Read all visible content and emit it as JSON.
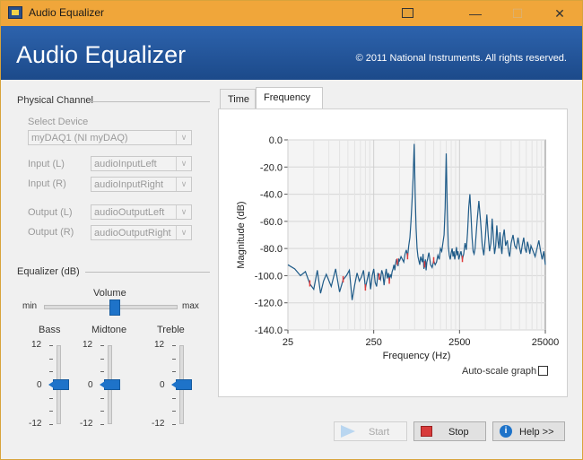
{
  "window": {
    "title": "Audio Equalizer"
  },
  "banner": {
    "title": "Audio Equalizer",
    "copyright": "© 2011 National Instruments. All rights reserved."
  },
  "physical_channel": {
    "section": "Physical Channel",
    "select_device_label": "Select Device",
    "device": "myDAQ1 (NI myDAQ)",
    "input_l_label": "Input (L)",
    "input_l": "audioInputLeft",
    "input_r_label": "Input (R)",
    "input_r": "audioInputRight",
    "output_l_label": "Output (L)",
    "output_l": "audioOutputLeft",
    "output_r_label": "Output (R)",
    "output_r": "audioOutputRight"
  },
  "equalizer": {
    "section": "Equalizer (dB)",
    "volume": {
      "label": "Volume",
      "min": "min",
      "max": "max",
      "value": 0.53
    },
    "bands": [
      {
        "name": "Bass",
        "top": "12",
        "mid": "0",
        "bottom": "-12",
        "value": 0
      },
      {
        "name": "Midtone",
        "top": "12",
        "mid": "0",
        "bottom": "-12",
        "value": 0
      },
      {
        "name": "Treble",
        "top": "12",
        "mid": "0",
        "bottom": "-12",
        "value": 0
      }
    ]
  },
  "tabs": [
    {
      "label": "Time",
      "active": false
    },
    {
      "label": "Frequency",
      "active": true
    }
  ],
  "graph": {
    "autoscale_label": "Auto-scale graph",
    "autoscale_checked": false
  },
  "buttons": {
    "start": "Start",
    "stop": "Stop",
    "help": "Help >>"
  },
  "colors": {
    "banner": "#1c4a8a",
    "titlebar": "#f0a63a",
    "accent": "#1e73c9",
    "trace": "#1f5b88",
    "trace_highlight": "#e03a3a",
    "stop_icon": "#d83b3b",
    "help_icon": "#1e73c9"
  },
  "chart_data": {
    "type": "line",
    "xlabel": "Frequency (Hz)",
    "ylabel": "Magnitude (dB)",
    "xscale": "log",
    "xlim": [
      25,
      25000
    ],
    "ylim": [
      -140,
      0
    ],
    "xticks": [
      "25",
      "250",
      "2500",
      "25000"
    ],
    "yticks": [
      "0.0",
      "-20.0",
      "-40.0",
      "-60.0",
      "-80.0",
      "-100.0",
      "-120.0",
      "-140.0"
    ],
    "grid": true,
    "series": [
      {
        "x": [
          25,
          30,
          35,
          40,
          45,
          50,
          55,
          60,
          65,
          70,
          80,
          90,
          100,
          110,
          120,
          130,
          140,
          150,
          160,
          170,
          180,
          190,
          200,
          210,
          220,
          230,
          240,
          250,
          260,
          270,
          280,
          290,
          300,
          310,
          320,
          330,
          340,
          350,
          360,
          370,
          380,
          390,
          400,
          410,
          420,
          430,
          440,
          450,
          460,
          470,
          480,
          490,
          500,
          520,
          540,
          560,
          580,
          600,
          620,
          640,
          660,
          680,
          700,
          720,
          740,
          760,
          780,
          800,
          820,
          840,
          860,
          880,
          900,
          920,
          940,
          960,
          980,
          1000,
          1020,
          1040,
          1060,
          1080,
          1100,
          1150,
          1200,
          1250,
          1300,
          1350,
          1400,
          1450,
          1500,
          1550,
          1600,
          1650,
          1700,
          1750,
          1800,
          1850,
          1900,
          1950,
          2000,
          2050,
          2100,
          2150,
          2200,
          2250,
          2300,
          2350,
          2400,
          2450,
          2500,
          2600,
          2700,
          2800,
          2900,
          3000,
          3100,
          3200,
          3300,
          3400,
          3500,
          3600,
          3700,
          3800,
          3900,
          4000,
          4200,
          4400,
          4600,
          4800,
          5000,
          5200,
          5400,
          5600,
          5800,
          6000,
          6200,
          6400,
          6600,
          6800,
          7000,
          7200,
          7400,
          7600,
          7800,
          8000,
          8300,
          8600,
          9000,
          9300,
          9600,
          10000,
          10500,
          11000,
          11500,
          12000,
          12500,
          13000,
          13500,
          14000,
          14500,
          15000,
          15500,
          16000,
          16500,
          17000,
          18000,
          19000,
          20000,
          21000,
          22000,
          23000,
          24000,
          25000
        ],
        "y": [
          -92,
          -95,
          -100,
          -97,
          -106,
          -110,
          -96,
          -113,
          -104,
          -99,
          -108,
          -95,
          -112,
          -103,
          -100,
          -96,
          -118,
          -107,
          -98,
          -104,
          -101,
          -96,
          -109,
          -103,
          -97,
          -110,
          -100,
          -95,
          -105,
          -108,
          -98,
          -101,
          -103,
          -96,
          -99,
          -107,
          -100,
          -95,
          -102,
          -98,
          -104,
          -99,
          -101,
          -97,
          -95,
          -92,
          -96,
          -91,
          -88,
          -90,
          -93,
          -88,
          -89,
          -86,
          -88,
          -90,
          -84,
          -81,
          -86,
          -78,
          -72,
          -60,
          -45,
          -28,
          -3,
          -40,
          -65,
          -80,
          -86,
          -89,
          -92,
          -86,
          -88,
          -90,
          -84,
          -95,
          -92,
          -88,
          -96,
          -90,
          -88,
          -85,
          -83,
          -92,
          -94,
          -89,
          -92,
          -90,
          -85,
          -88,
          -80,
          -82,
          -76,
          -70,
          -50,
          -10,
          -52,
          -78,
          -85,
          -88,
          -83,
          -80,
          -86,
          -82,
          -88,
          -84,
          -79,
          -85,
          -82,
          -88,
          -86,
          -82,
          -88,
          -84,
          -76,
          -81,
          -68,
          -50,
          -40,
          -55,
          -72,
          -82,
          -84,
          -80,
          -70,
          -60,
          -45,
          -60,
          -78,
          -85,
          -72,
          -55,
          -70,
          -82,
          -76,
          -58,
          -72,
          -84,
          -78,
          -63,
          -74,
          -80,
          -68,
          -78,
          -84,
          -72,
          -66,
          -78,
          -74,
          -82,
          -86,
          -76,
          -70,
          -78,
          -80,
          -72,
          -79,
          -84,
          -77,
          -72,
          -80,
          -83,
          -75,
          -79,
          -84,
          -78,
          -82,
          -86,
          -80,
          -74,
          -82,
          -88,
          -82,
          -92
        ]
      }
    ]
  }
}
